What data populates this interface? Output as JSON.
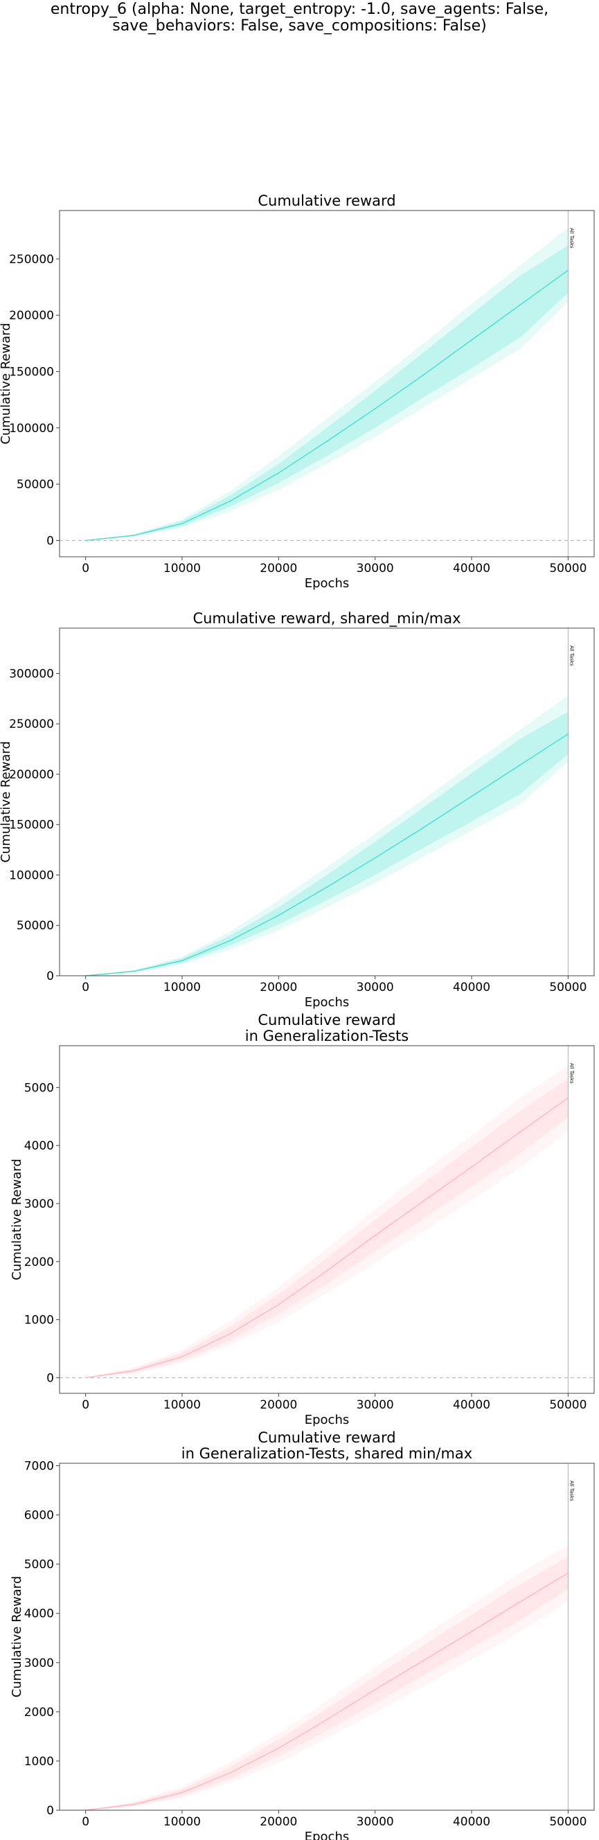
{
  "figure": {
    "suptitle_lines": [
      "entropy_6 (alpha: None, target_entropy: -1.0, save_agents: False,",
      "save_behaviors: False, save_compositions: False)"
    ]
  },
  "colors": {
    "turquoise": "#40e0d0",
    "pink": "#ffb6c1",
    "vline": "#b0b0b0",
    "zero_line": "#b0b0b0",
    "axes": "#444444"
  },
  "chart_data": [
    {
      "type": "line",
      "title": [
        "Cumulative reward"
      ],
      "xlabel": "Epochs",
      "ylabel": "Cumulative Reward",
      "xlim": [
        -2700,
        52700
      ],
      "ylim": [
        -14500,
        293000
      ],
      "xticks": [
        0,
        10000,
        20000,
        30000,
        40000,
        50000
      ],
      "yticks": [
        0,
        50000,
        100000,
        150000,
        200000,
        250000
      ],
      "color": "turquoise",
      "zero_line": true,
      "vline": {
        "x": 50000,
        "label": "All Tasks"
      },
      "series": [
        {
          "x": [
            0,
            5000,
            10000,
            15000,
            20000,
            25000,
            30000,
            35000,
            40000,
            45000,
            50000
          ],
          "y": [
            0,
            4500,
            15000,
            35000,
            60000,
            88000,
            117000,
            147000,
            178000,
            209000,
            240000
          ],
          "band_inner": [
            [
              0,
              0
            ],
            [
              4000,
              5000
            ],
            [
              13000,
              17500
            ],
            [
              30000,
              40000
            ],
            [
              51000,
              68000
            ],
            [
              75000,
              100000
            ],
            [
              100000,
              133000
            ],
            [
              127000,
              167000
            ],
            [
              153000,
              201000
            ],
            [
              180000,
              235000
            ],
            [
              220000,
              262000
            ]
          ],
          "band_outer": [
            [
              0,
              0
            ],
            [
              3500,
              5500
            ],
            [
              11500,
              19000
            ],
            [
              26000,
              44000
            ],
            [
              45000,
              75000
            ],
            [
              68000,
              108000
            ],
            [
              92000,
              141000
            ],
            [
              118000,
              175000
            ],
            [
              144000,
              210000
            ],
            [
              170000,
              244000
            ],
            [
              212000,
              278000
            ]
          ]
        }
      ]
    },
    {
      "type": "line",
      "title": [
        "Cumulative reward, shared_min/max"
      ],
      "xlabel": "Epochs",
      "ylabel": "Cumulative Reward",
      "xlim": [
        -2700,
        52700
      ],
      "ylim": [
        0,
        345000
      ],
      "xticks": [
        0,
        10000,
        20000,
        30000,
        40000,
        50000
      ],
      "yticks": [
        0,
        50000,
        100000,
        150000,
        200000,
        250000,
        300000
      ],
      "color": "turquoise",
      "zero_line": false,
      "vline": {
        "x": 50000,
        "label": "All Tasks"
      },
      "series": [
        {
          "x": [
            0,
            5000,
            10000,
            15000,
            20000,
            25000,
            30000,
            35000,
            40000,
            45000,
            50000
          ],
          "y": [
            0,
            4500,
            15000,
            35000,
            60000,
            88000,
            117000,
            147000,
            178000,
            209000,
            240000
          ],
          "band_inner": [
            [
              0,
              0
            ],
            [
              4000,
              5000
            ],
            [
              13000,
              17500
            ],
            [
              30000,
              40000
            ],
            [
              51000,
              68000
            ],
            [
              75000,
              100000
            ],
            [
              100000,
              133000
            ],
            [
              127000,
              167000
            ],
            [
              153000,
              201000
            ],
            [
              180000,
              235000
            ],
            [
              220000,
              262000
            ]
          ],
          "band_outer": [
            [
              0,
              0
            ],
            [
              3500,
              5500
            ],
            [
              11500,
              19000
            ],
            [
              26000,
              44000
            ],
            [
              45000,
              75000
            ],
            [
              68000,
              108000
            ],
            [
              92000,
              141000
            ],
            [
              118000,
              175000
            ],
            [
              144000,
              210000
            ],
            [
              170000,
              244000
            ],
            [
              212000,
              278000
            ]
          ]
        }
      ]
    },
    {
      "type": "line",
      "title": [
        "Cumulative reward",
        "in Generalization-Tests"
      ],
      "xlabel": "Epochs",
      "ylabel": "Cumulative Reward",
      "xlim": [
        -2700,
        52700
      ],
      "ylim": [
        -270,
        5720
      ],
      "xticks": [
        0,
        10000,
        20000,
        30000,
        40000,
        50000
      ],
      "yticks": [
        0,
        1000,
        2000,
        3000,
        4000,
        5000
      ],
      "color": "pink",
      "zero_line": true,
      "vline": {
        "x": 50000,
        "label": "All Tasks"
      },
      "series": [
        {
          "x": [
            0,
            5000,
            10000,
            15000,
            20000,
            25000,
            30000,
            35000,
            40000,
            45000,
            50000
          ],
          "y": [
            0,
            120,
            360,
            760,
            1260,
            1840,
            2450,
            3040,
            3630,
            4230,
            4820
          ],
          "band_inner": [
            [
              0,
              0
            ],
            [
              90,
              150
            ],
            [
              300,
              430
            ],
            [
              640,
              880
            ],
            [
              1100,
              1440
            ],
            [
              1620,
              2060
            ],
            [
              2180,
              2720
            ],
            [
              2740,
              3350
            ],
            [
              3300,
              3970
            ],
            [
              3860,
              4590
            ],
            [
              4500,
              5150
            ]
          ],
          "band_outer": [
            [
              0,
              0
            ],
            [
              70,
              175
            ],
            [
              250,
              480
            ],
            [
              560,
              980
            ],
            [
              960,
              1560
            ],
            [
              1460,
              2220
            ],
            [
              1980,
              2900
            ],
            [
              2520,
              3550
            ],
            [
              3060,
              4170
            ],
            [
              3620,
              4820
            ],
            [
              4250,
              5380
            ]
          ]
        }
      ]
    },
    {
      "type": "line",
      "title": [
        "Cumulative reward",
        "in Generalization-Tests, shared min/max"
      ],
      "xlabel": "Epochs",
      "ylabel": "Cumulative Reward",
      "xlim": [
        -2700,
        52700
      ],
      "ylim": [
        0,
        7050
      ],
      "xticks": [
        0,
        10000,
        20000,
        30000,
        40000,
        50000
      ],
      "yticks": [
        0,
        1000,
        2000,
        3000,
        4000,
        5000,
        6000,
        7000
      ],
      "color": "pink",
      "zero_line": false,
      "vline": {
        "x": 50000,
        "label": "All Tasks"
      },
      "series": [
        {
          "x": [
            0,
            5000,
            10000,
            15000,
            20000,
            25000,
            30000,
            35000,
            40000,
            45000,
            50000
          ],
          "y": [
            0,
            120,
            360,
            760,
            1260,
            1840,
            2450,
            3040,
            3630,
            4230,
            4820
          ],
          "band_inner": [
            [
              0,
              0
            ],
            [
              90,
              150
            ],
            [
              300,
              430
            ],
            [
              640,
              880
            ],
            [
              1100,
              1440
            ],
            [
              1620,
              2060
            ],
            [
              2180,
              2720
            ],
            [
              2740,
              3350
            ],
            [
              3300,
              3970
            ],
            [
              3860,
              4590
            ],
            [
              4500,
              5150
            ]
          ],
          "band_outer": [
            [
              0,
              0
            ],
            [
              70,
              175
            ],
            [
              250,
              480
            ],
            [
              560,
              980
            ],
            [
              960,
              1560
            ],
            [
              1460,
              2220
            ],
            [
              1980,
              2900
            ],
            [
              2520,
              3550
            ],
            [
              3060,
              4170
            ],
            [
              3620,
              4820
            ],
            [
              4250,
              5380
            ]
          ]
        }
      ]
    }
  ]
}
